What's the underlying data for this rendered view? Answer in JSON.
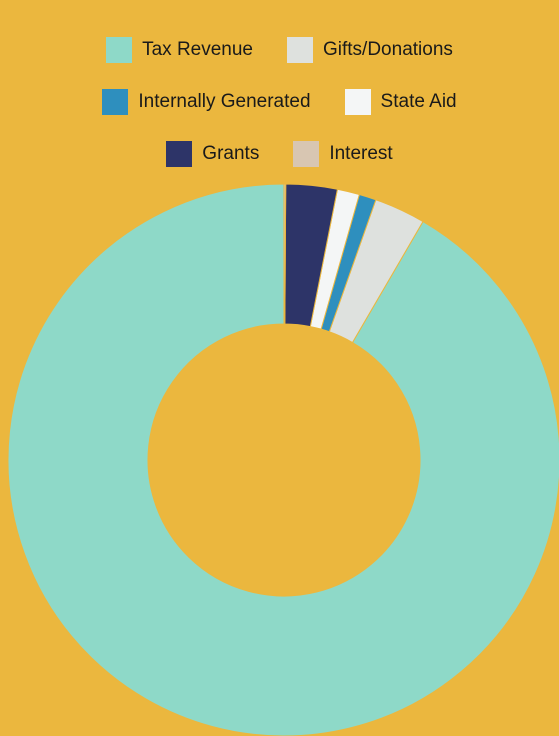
{
  "background_color": "#EBB73E",
  "chart_data": {
    "type": "pie",
    "variant": "donut",
    "title": "",
    "legend_placement": "top",
    "categories": [
      "Tax Revenue",
      "Gifts/Donations",
      "Internally Generated",
      "State Aid",
      "Grants",
      "Interest"
    ],
    "values": [
      91.6,
      3.0,
      1.0,
      1.3,
      3.0,
      0.1
    ],
    "colors": [
      "#8ED9C8",
      "#DEE1DE",
      "#2E8FBE",
      "#F4F6F6",
      "#2D3468",
      "#D8C6B2"
    ]
  }
}
